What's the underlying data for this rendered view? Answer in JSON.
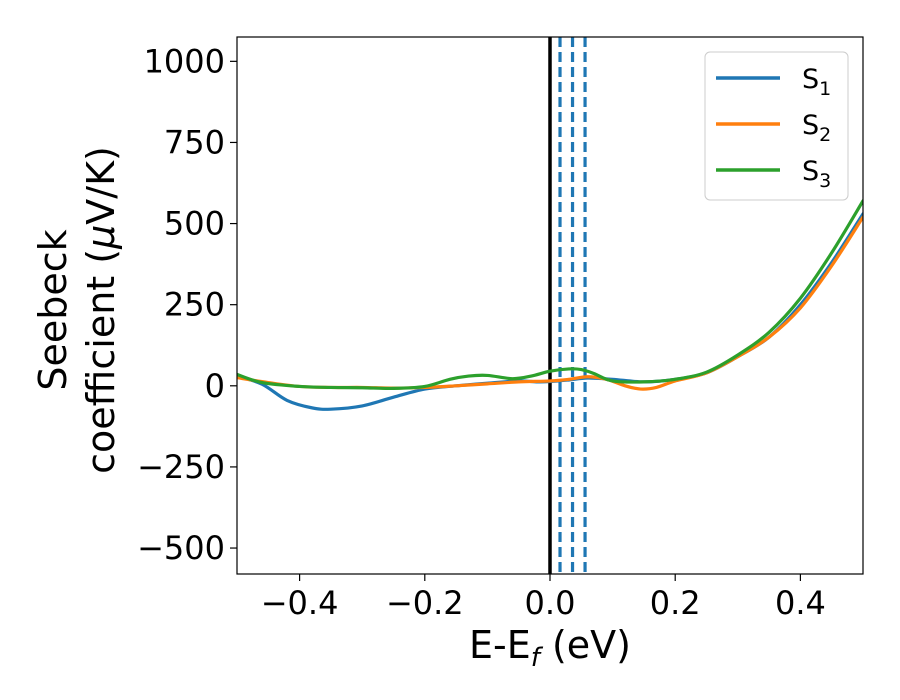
{
  "chart_data": {
    "type": "line",
    "xlabel": {
      "base": "E-E",
      "sub": "f",
      "tail": " (eV)"
    },
    "ylabel": {
      "line1": "Seebeck",
      "line2_prefix": "coefficient  (",
      "line2_mu": "μ",
      "line2_suffix": "V/K)"
    },
    "xlim": [
      -0.5,
      0.5
    ],
    "ylim": [
      -580,
      1075
    ],
    "x_ticks": [
      -0.4,
      -0.2,
      0.0,
      0.2,
      0.4
    ],
    "x_tick_labels": [
      "−0.4",
      "−0.2",
      "0.0",
      "0.2",
      "0.4"
    ],
    "y_ticks": [
      -500,
      -250,
      0,
      250,
      500,
      750,
      1000
    ],
    "y_tick_labels": [
      "−500",
      "−250",
      "0",
      "250",
      "500",
      "750",
      "1000"
    ],
    "grid": false,
    "legend": "top-right",
    "series": [
      {
        "name": "S",
        "sub": "1",
        "color": "#1f77b4",
        "points": [
          [
            -0.5,
            30
          ],
          [
            -0.46,
            5
          ],
          [
            -0.42,
            -45
          ],
          [
            -0.38,
            -68
          ],
          [
            -0.35,
            -72
          ],
          [
            -0.3,
            -62
          ],
          [
            -0.25,
            -35
          ],
          [
            -0.2,
            -10
          ],
          [
            -0.15,
            0
          ],
          [
            -0.1,
            8
          ],
          [
            -0.05,
            15
          ],
          [
            -0.02,
            12
          ],
          [
            0.0,
            13
          ],
          [
            0.03,
            18
          ],
          [
            0.06,
            24
          ],
          [
            0.1,
            20
          ],
          [
            0.15,
            12
          ],
          [
            0.2,
            20
          ],
          [
            0.25,
            40
          ],
          [
            0.3,
            90
          ],
          [
            0.35,
            150
          ],
          [
            0.4,
            250
          ],
          [
            0.45,
            380
          ],
          [
            0.5,
            530
          ]
        ]
      },
      {
        "name": "S",
        "sub": "2",
        "color": "#ff7f0e",
        "points": [
          [
            -0.5,
            25
          ],
          [
            -0.45,
            10
          ],
          [
            -0.4,
            -2
          ],
          [
            -0.35,
            -5
          ],
          [
            -0.3,
            -5
          ],
          [
            -0.25,
            -7
          ],
          [
            -0.2,
            -5
          ],
          [
            -0.15,
            0
          ],
          [
            -0.1,
            6
          ],
          [
            -0.05,
            12
          ],
          [
            0.0,
            15
          ],
          [
            0.03,
            20
          ],
          [
            0.06,
            28
          ],
          [
            0.09,
            20
          ],
          [
            0.12,
            0
          ],
          [
            0.145,
            -10
          ],
          [
            0.17,
            -5
          ],
          [
            0.2,
            15
          ],
          [
            0.25,
            40
          ],
          [
            0.3,
            90
          ],
          [
            0.35,
            150
          ],
          [
            0.4,
            240
          ],
          [
            0.45,
            370
          ],
          [
            0.5,
            520
          ]
        ]
      },
      {
        "name": "S",
        "sub": "3",
        "color": "#2ca02c",
        "points": [
          [
            -0.5,
            35
          ],
          [
            -0.46,
            10
          ],
          [
            -0.4,
            -2
          ],
          [
            -0.35,
            -5
          ],
          [
            -0.3,
            -6
          ],
          [
            -0.25,
            -8
          ],
          [
            -0.2,
            -2
          ],
          [
            -0.16,
            20
          ],
          [
            -0.13,
            30
          ],
          [
            -0.1,
            32
          ],
          [
            -0.06,
            22
          ],
          [
            -0.03,
            30
          ],
          [
            0.0,
            45
          ],
          [
            0.03,
            52
          ],
          [
            0.05,
            50
          ],
          [
            0.07,
            38
          ],
          [
            0.1,
            15
          ],
          [
            0.15,
            12
          ],
          [
            0.2,
            20
          ],
          [
            0.25,
            42
          ],
          [
            0.3,
            95
          ],
          [
            0.35,
            165
          ],
          [
            0.4,
            270
          ],
          [
            0.45,
            410
          ],
          [
            0.5,
            570
          ]
        ]
      }
    ],
    "reference_lines": [
      {
        "x": 0.0,
        "style": "solid",
        "color": "#000000"
      },
      {
        "x": 0.016,
        "style": "dashed",
        "color": "#1f77b4"
      },
      {
        "x": 0.036,
        "style": "dashed",
        "color": "#1f77b4"
      },
      {
        "x": 0.056,
        "style": "dashed",
        "color": "#1f77b4"
      }
    ]
  }
}
